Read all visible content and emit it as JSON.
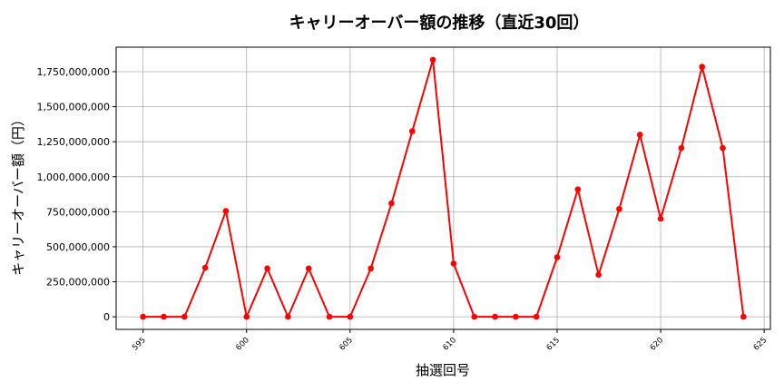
{
  "chart_data": {
    "type": "line",
    "title": "キャリーオーバー額の推移（直近30回）",
    "xlabel": "抽選回号",
    "ylabel": "キャリーオーバー額（円）",
    "xlim": [
      593.7,
      625.3
    ],
    "ylim": [
      -90000000,
      1925000000
    ],
    "grid": true,
    "color": "#ff0000",
    "x_ticks": [
      595,
      600,
      605,
      610,
      615,
      620,
      625
    ],
    "y_ticks": [
      0,
      250000000,
      500000000,
      750000000,
      1000000000,
      1250000000,
      1500000000,
      1750000000
    ],
    "y_tick_labels": [
      "0",
      "250,000,000",
      "500,000,000",
      "750,000,000",
      "1,000,000,000",
      "1,250,000,000",
      "1,500,000,000",
      "1,750,000,000"
    ],
    "x": [
      595,
      596,
      597,
      598,
      599,
      600,
      601,
      602,
      603,
      604,
      605,
      606,
      607,
      608,
      609,
      610,
      611,
      612,
      613,
      614,
      615,
      616,
      617,
      618,
      619,
      620,
      621,
      622,
      623,
      624
    ],
    "y": [
      0,
      0,
      0,
      350000000,
      755000000,
      0,
      345000000,
      0,
      345000000,
      0,
      0,
      345000000,
      810000000,
      1325000000,
      1835000000,
      380000000,
      0,
      0,
      0,
      0,
      425000000,
      910000000,
      300000000,
      770000000,
      1300000000,
      700000000,
      1205000000,
      1785000000,
      1205000000,
      0
    ]
  }
}
